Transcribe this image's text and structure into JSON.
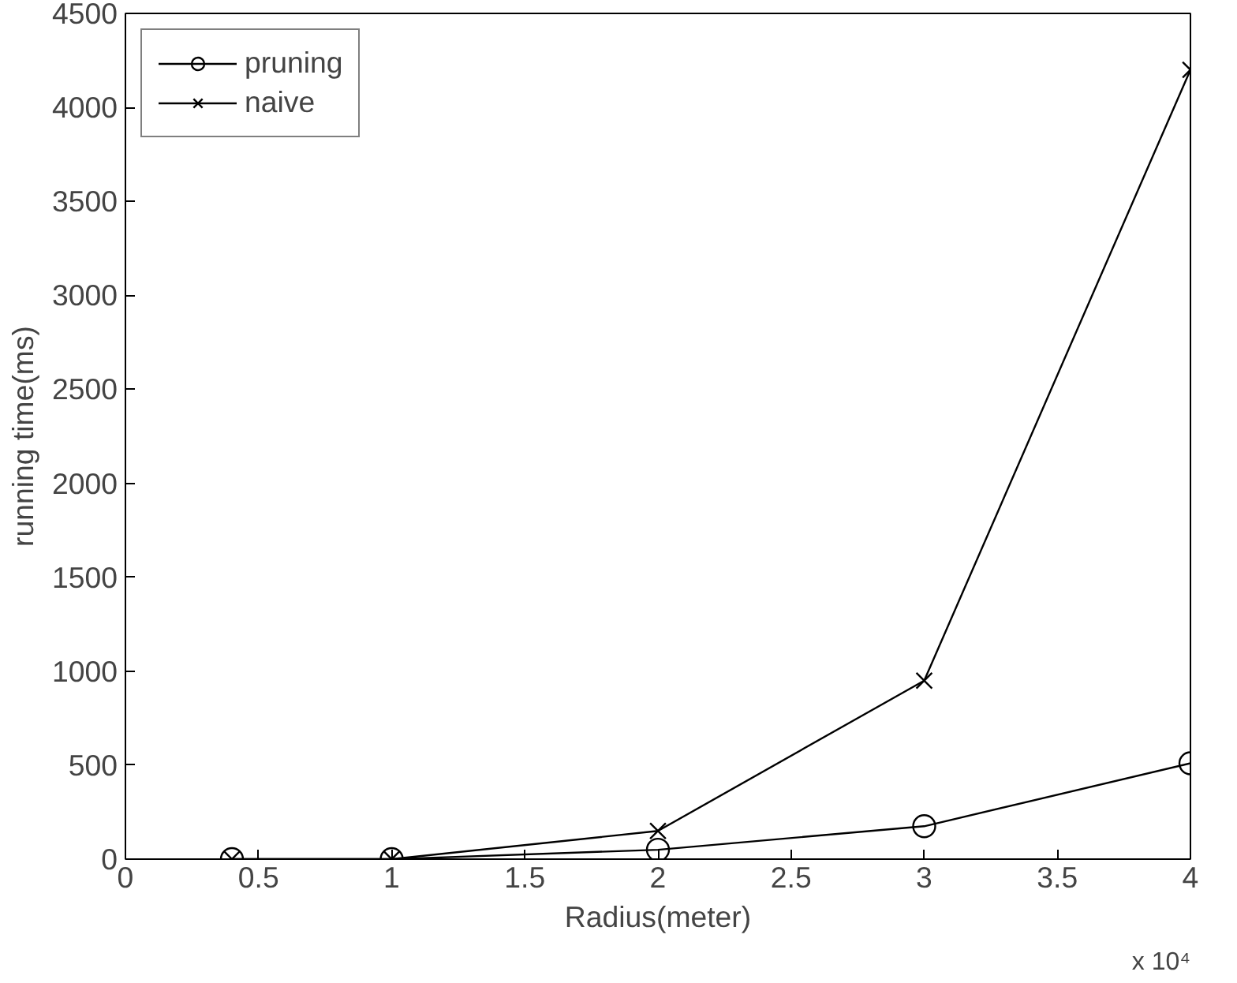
{
  "chart_data": {
    "type": "line",
    "xlabel": "Radius(meter)",
    "ylabel": "running time(ms)",
    "x": [
      0.4,
      1,
      2,
      3,
      4
    ],
    "series": [
      {
        "name": "pruning",
        "color": "#000000",
        "marker": "circle",
        "values": [
          0,
          0,
          50,
          175,
          510
        ]
      },
      {
        "name": "naive",
        "color": "#000000",
        "marker": "cross",
        "values": [
          0,
          0,
          150,
          950,
          4200
        ]
      }
    ],
    "xlim": [
      0,
      4
    ],
    "xticks": [
      0,
      0.5,
      1,
      1.5,
      2,
      2.5,
      3,
      3.5,
      4
    ],
    "ylim": [
      0,
      4500
    ],
    "yticks": [
      0,
      500,
      1000,
      1500,
      2000,
      2500,
      3000,
      3500,
      4000,
      4500
    ],
    "annotations": [
      "x 10⁴"
    ],
    "grid": false,
    "legend": "top left",
    "line_style": "solid"
  }
}
